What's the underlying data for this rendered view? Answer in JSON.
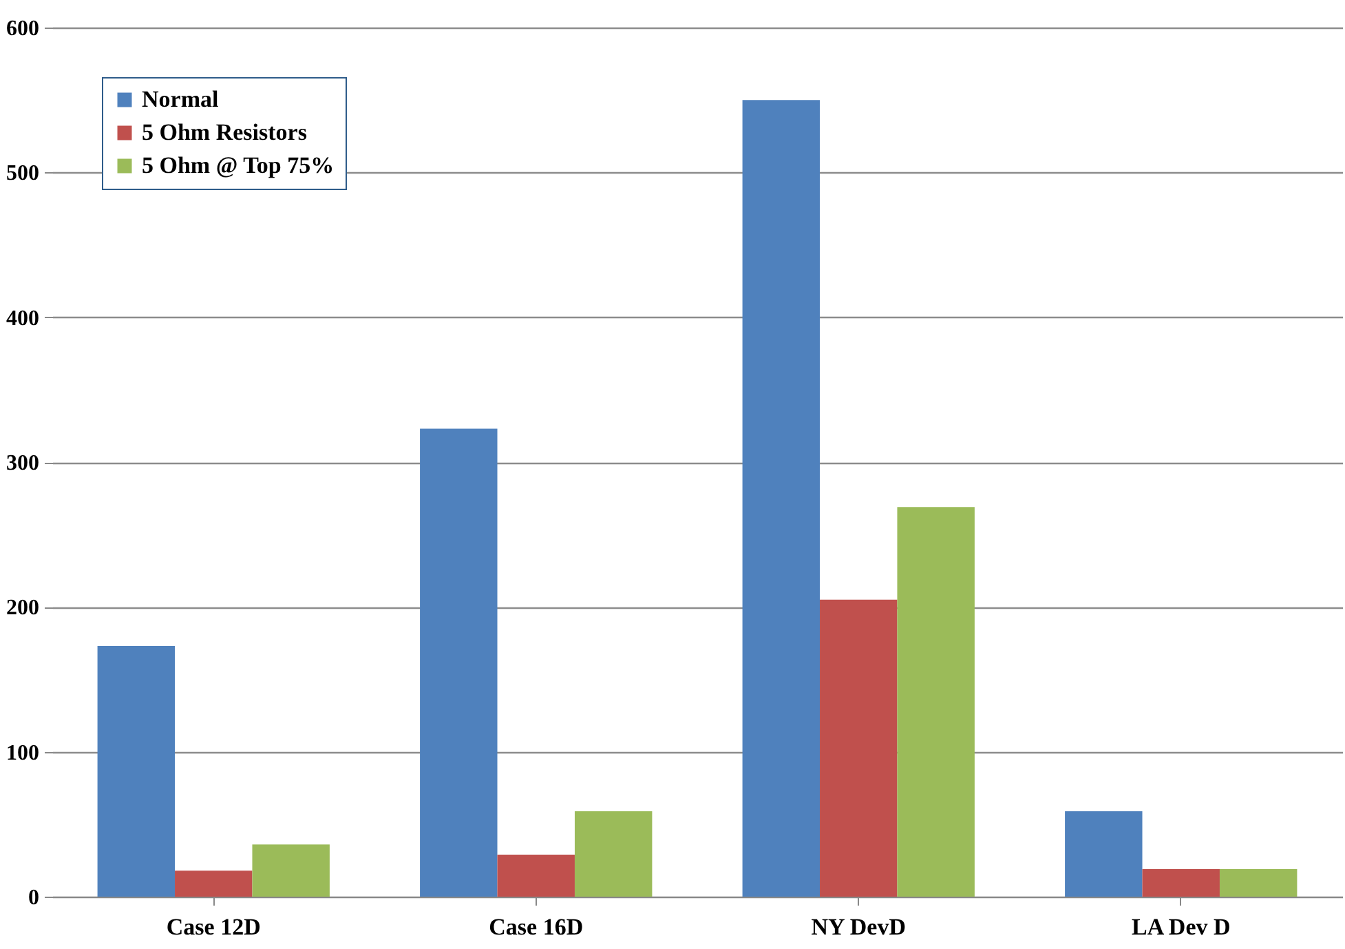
{
  "chart_data": {
    "type": "bar",
    "categories": [
      "Case 12D",
      "Case 16D",
      "NY DevD",
      "LA Dev D"
    ],
    "series": [
      {
        "name": "Normal",
        "color": "#4f81bd",
        "values": [
          173,
          323,
          550,
          59
        ]
      },
      {
        "name": "5 Ohm Resistors",
        "color": "#c0504d",
        "values": [
          18,
          29,
          205,
          19
        ]
      },
      {
        "name": "5 Ohm @ Top 75%",
        "color": "#9bbb59",
        "values": [
          36,
          59,
          269,
          19
        ]
      }
    ],
    "ylim": [
      0,
      600
    ],
    "yticks": [
      0,
      100,
      200,
      300,
      400,
      500,
      600
    ],
    "grid": "y",
    "legend": "top left"
  }
}
